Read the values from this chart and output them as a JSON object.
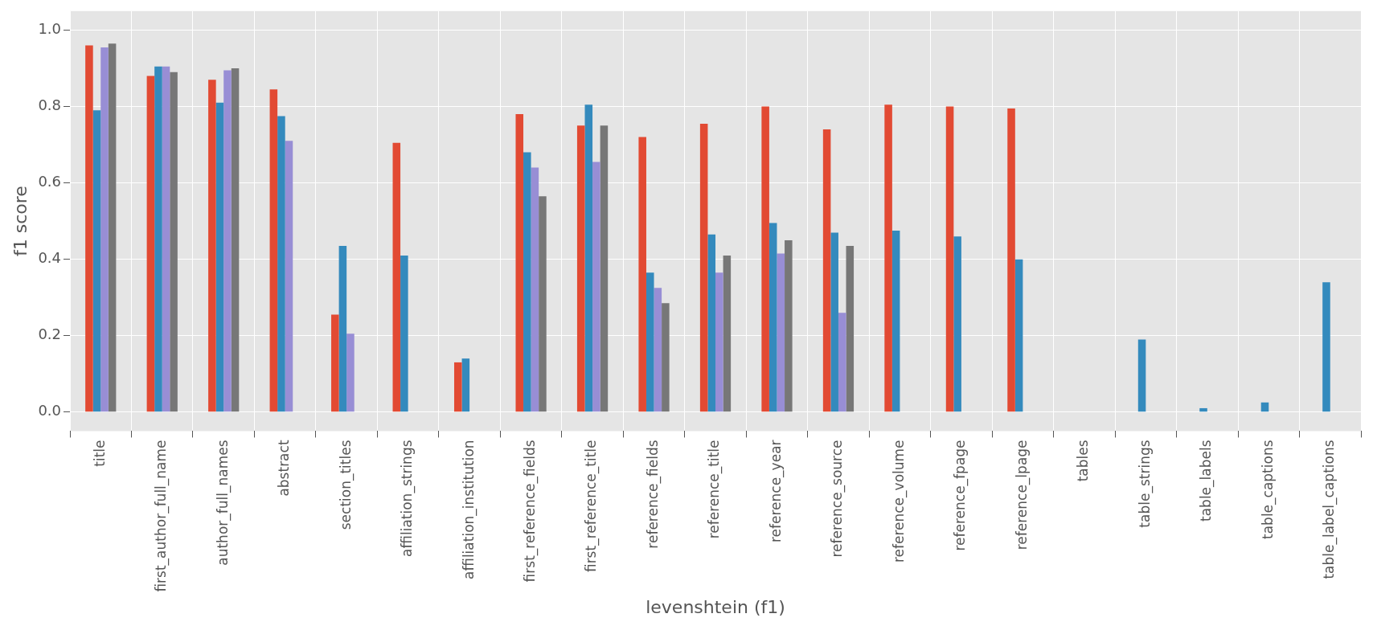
{
  "chart_data": {
    "type": "bar",
    "xlabel": "levenshtein (f1)",
    "ylabel": "f1 score",
    "categories": [
      "title",
      "first_author_full_name",
      "author_full_names",
      "abstract",
      "section_titles",
      "affiliation_strings",
      "affiliation_institution",
      "first_reference_fields",
      "first_reference_title",
      "reference_fields",
      "reference_title",
      "reference_year",
      "reference_source",
      "reference_volume",
      "reference_fpage",
      "reference_lpage",
      "tables",
      "table_strings",
      "table_labels",
      "table_captions",
      "table_label_captions"
    ],
    "series": [
      {
        "color": "#e24a33",
        "values": [
          0.96,
          0.88,
          0.87,
          0.845,
          0.255,
          0.705,
          0.13,
          0.78,
          0.75,
          0.72,
          0.755,
          0.8,
          0.74,
          0.805,
          0.8,
          0.795,
          0,
          0,
          0,
          0,
          0
        ]
      },
      {
        "color": "#348abd",
        "values": [
          0.79,
          0.905,
          0.81,
          0.775,
          0.435,
          0.41,
          0.14,
          0.68,
          0.805,
          0.365,
          0.465,
          0.495,
          0.47,
          0.475,
          0.46,
          0.4,
          0,
          0.19,
          0.01,
          0.025,
          0.34
        ]
      },
      {
        "color": "#988ed5",
        "values": [
          0.955,
          0.905,
          0.895,
          0.71,
          0.205,
          0,
          0,
          0.64,
          0.655,
          0.325,
          0.365,
          0.415,
          0.26,
          0,
          0,
          0,
          0,
          0,
          0,
          0,
          0
        ]
      },
      {
        "color": "#777777",
        "values": [
          0.965,
          0.89,
          0.9,
          0,
          0,
          0,
          0,
          0.565,
          0.75,
          0.285,
          0.41,
          0.45,
          0.435,
          0,
          0,
          0,
          0,
          0,
          0,
          0,
          0
        ]
      }
    ],
    "ylim": [
      -0.05,
      1.05
    ],
    "yticks": [
      {
        "value": 0,
        "label": "0.0"
      },
      0.2,
      0.4,
      0.6,
      0.8,
      {
        "value": 1,
        "label": "1.0"
      }
    ],
    "grid": true
  }
}
